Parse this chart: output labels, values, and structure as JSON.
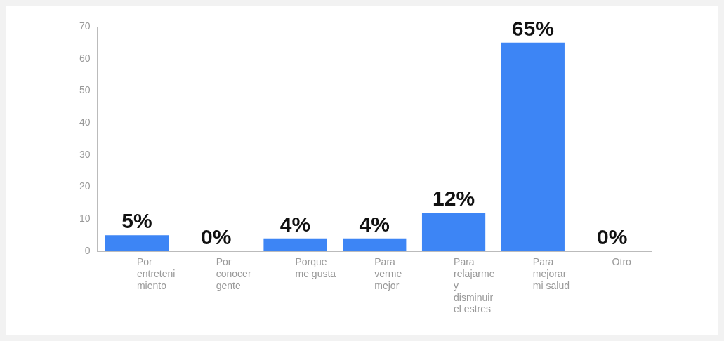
{
  "chart_data": {
    "type": "bar",
    "categories": [
      "Por entreteni miento",
      "Por conocer gente",
      "Porque me gusta",
      "Para verme mejor",
      "Para relajarme y disminuir el estres",
      "Para mejorar mi salud",
      "Otro"
    ],
    "values": [
      5,
      0,
      4,
      4,
      12,
      65,
      0
    ],
    "value_labels": [
      "5%",
      "0%",
      "4%",
      "4%",
      "12%",
      "65%",
      "0%"
    ],
    "color": "#3d85f5",
    "ylim": [
      0,
      70
    ],
    "yticks": [
      0,
      10,
      20,
      30,
      40,
      50,
      60,
      70
    ],
    "grid": false,
    "legend": false
  }
}
